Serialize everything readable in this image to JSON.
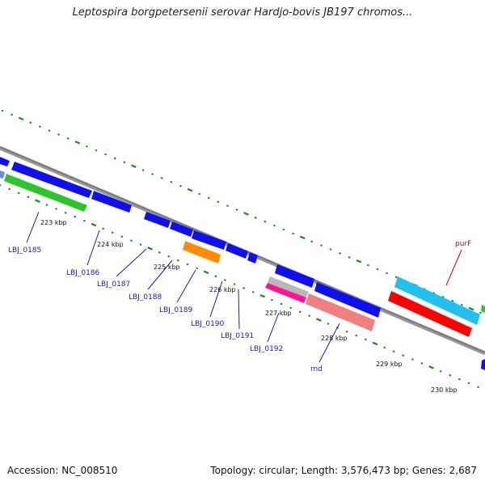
{
  "title": "Leptospira borgpetersenii serovar Hardjo-bovis JB197 chromos...",
  "footer": {
    "accession": "Accession: NC_008510",
    "topology": "Topology: circular; Length: 3,576,473 bp; Genes: 2,687"
  },
  "kbp_labels": [
    "223 kbp",
    "224 kbp",
    "225 kbp",
    "226 kbp",
    "227 kbp",
    "228 kbp",
    "229 kbp",
    "230 kbp"
  ],
  "gene_labels": [
    "LBJ_0185",
    "LBJ_0186",
    "LBJ_0187",
    "LBJ_0188",
    "LBJ_0189",
    "LBJ_0190",
    "LBJ_0191",
    "LBJ_0192",
    "rnd",
    "purF"
  ],
  "colors": {
    "blue": "#1010ee",
    "green": "#2ec42e",
    "orange": "#ff8c00",
    "magenta": "#ff1493",
    "gray": "#b8b8b8",
    "salmon": "#f08080",
    "cyan": "#22c0ee",
    "red": "#ff0000",
    "backbone": "#888888",
    "ticks": "#1a8a1a",
    "label_blue": "#1a1aa8",
    "label_red": "#e00000"
  }
}
